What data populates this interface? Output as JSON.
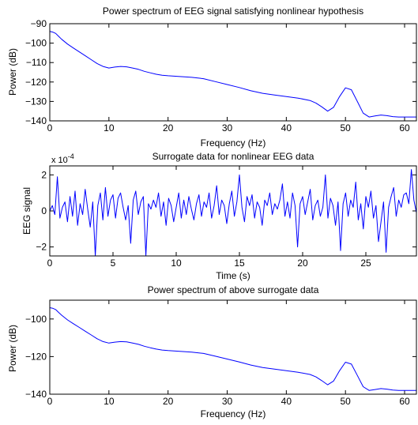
{
  "chart_data": [
    {
      "type": "line",
      "title": "Power spectrum of EEG signal satisfying nonlinear hypothesis",
      "xlabel": "Frequency (Hz)",
      "ylabel": "Power (dB)",
      "xlim": [
        0,
        62
      ],
      "ylim": [
        -140,
        -90
      ],
      "xticks": [
        0,
        10,
        20,
        30,
        40,
        50,
        60
      ],
      "yticks": [
        -140,
        -130,
        -120,
        -110,
        -100,
        -90
      ],
      "grid": false,
      "line_color": "#0000ff",
      "series": [
        {
          "x": [
            0,
            0.5,
            1,
            1.5,
            2,
            3,
            4,
            5,
            6,
            7,
            8,
            9,
            10,
            11,
            12,
            13,
            14,
            15,
            16,
            17,
            18,
            19,
            20,
            22,
            24,
            26,
            28,
            30,
            32,
            34,
            36,
            38,
            40,
            42,
            44,
            45,
            46,
            47,
            48,
            49,
            50,
            51,
            52,
            53,
            54,
            55,
            56,
            57,
            58,
            59,
            60,
            61,
            62
          ],
          "y": [
            -94,
            -94.3,
            -95,
            -96.5,
            -98,
            -100.5,
            -102.5,
            -104.5,
            -106.5,
            -108.5,
            -110.5,
            -112,
            -112.8,
            -112.3,
            -112,
            -112.2,
            -112.8,
            -113.5,
            -114.5,
            -115.3,
            -116,
            -116.5,
            -116.8,
            -117.2,
            -117.6,
            -118.3,
            -119.8,
            -121.3,
            -122.8,
            -124.5,
            -125.8,
            -126.7,
            -127.5,
            -128.3,
            -129.5,
            -130.8,
            -132.8,
            -135,
            -133,
            -127.5,
            -123,
            -124,
            -130,
            -136,
            -138,
            -137.5,
            -137,
            -137.3,
            -137.8,
            -138,
            -138,
            -138,
            -138
          ]
        }
      ]
    },
    {
      "type": "line",
      "title": "Surrogate data for nonlinear EEG data",
      "xlabel": "Time (s)",
      "ylabel": "EEG signal",
      "exponent_label": "x 10",
      "exponent_power": "-4",
      "xlim": [
        0,
        29
      ],
      "ylim": [
        -2.5,
        2.5
      ],
      "xticks": [
        0,
        5,
        10,
        15,
        20,
        25
      ],
      "yticks": [
        -2,
        0,
        2
      ],
      "grid": false,
      "line_color": "#0000ff",
      "series": [
        {
          "x": [
            0,
            0.2,
            0.4,
            0.6,
            0.8,
            1.0,
            1.2,
            1.4,
            1.6,
            1.8,
            2.0,
            2.2,
            2.4,
            2.6,
            2.8,
            3.0,
            3.2,
            3.4,
            3.6,
            3.8,
            4.0,
            4.2,
            4.4,
            4.6,
            4.8,
            5.0,
            5.2,
            5.4,
            5.6,
            5.8,
            6.0,
            6.2,
            6.4,
            6.6,
            6.8,
            7.0,
            7.2,
            7.4,
            7.6,
            7.8,
            8.0,
            8.2,
            8.4,
            8.6,
            8.8,
            9.0,
            9.2,
            9.4,
            9.6,
            9.8,
            10.0,
            10.2,
            10.4,
            10.6,
            10.8,
            11.0,
            11.2,
            11.4,
            11.6,
            11.8,
            12.0,
            12.2,
            12.4,
            12.6,
            12.8,
            13.0,
            13.2,
            13.4,
            13.6,
            13.8,
            14.0,
            14.2,
            14.4,
            14.6,
            14.8,
            15.0,
            15.2,
            15.4,
            15.6,
            15.8,
            16.0,
            16.2,
            16.4,
            16.6,
            16.8,
            17.0,
            17.2,
            17.4,
            17.6,
            17.8,
            18.0,
            18.2,
            18.4,
            18.6,
            18.8,
            19.0,
            19.2,
            19.4,
            19.6,
            19.8,
            20.0,
            20.2,
            20.4,
            20.6,
            20.8,
            21.0,
            21.2,
            21.4,
            21.6,
            21.8,
            22.0,
            22.2,
            22.4,
            22.6,
            22.8,
            23.0,
            23.2,
            23.4,
            23.6,
            23.8,
            24.0,
            24.2,
            24.4,
            24.6,
            24.8,
            25.0,
            25.2,
            25.4,
            25.6,
            25.8,
            26.0,
            26.2,
            26.4,
            26.6,
            26.8,
            27.0,
            27.2,
            27.4,
            27.6,
            27.8,
            28.0,
            28.2,
            28.4,
            28.6,
            28.8,
            29.0
          ],
          "y": [
            0,
            0.3,
            -0.2,
            1.9,
            -0.4,
            0.2,
            0.5,
            -0.6,
            0.8,
            -0.3,
            1.1,
            -0.8,
            0.4,
            -0.2,
            1.2,
            0.1,
            -0.9,
            0.5,
            -2.5,
            0.3,
            1.0,
            -0.5,
            1.3,
            -0.3,
            0.6,
            0.9,
            -0.4,
            0.7,
            1.0,
            0.2,
            -0.5,
            0.3,
            -1.8,
            0.6,
            1.1,
            -0.2,
            0.5,
            0.8,
            -2.5,
            0.4,
            0.1,
            0.6,
            0.2,
            1.0,
            -0.3,
            0.5,
            -0.8,
            0.7,
            0.3,
            -0.6,
            0.2,
            1.0,
            -0.4,
            0.6,
            -0.2,
            0.8,
            0.1,
            -0.5,
            0.4,
            0.9,
            -0.3,
            0.5,
            0.2,
            1.0,
            -0.4,
            0.3,
            1.4,
            -0.2,
            0.6,
            0.3,
            -0.7,
            0.4,
            1.1,
            -0.3,
            0.5,
            2.0,
            0.2,
            -0.6,
            0.8,
            0.3,
            0.9,
            -0.4,
            0.5,
            0.2,
            -0.8,
            0.6,
            0.3,
            1.0,
            -0.2,
            0.4,
            0.1,
            0.6,
            1.5,
            -0.3,
            0.5,
            -0.4,
            1.0,
            0.3,
            -2.0,
            0.4,
            0.8,
            -0.2,
            0.5,
            1.2,
            -0.5,
            0.3,
            0.6,
            -0.3,
            0.2,
            2.0,
            -0.4,
            0.7,
            0.3,
            -0.8,
            0.5,
            -2.2,
            0.4,
            1.0,
            -0.3,
            0.6,
            0.2,
            1.6,
            -0.5,
            0.4,
            -1.0,
            0.8,
            0.2,
            1.1,
            -0.4,
            0.3,
            -1.7,
            -0.6,
            0.5,
            -2.3,
            0.2,
            0.8,
            1.3,
            -0.3,
            0.6,
            0.2,
            0.9,
            1.0,
            0.4,
            2.3,
            0.6,
            -0.1
          ]
        }
      ]
    },
    {
      "type": "line",
      "title": "Power spectrum of above surrogate data",
      "xlabel": "Frequency (Hz)",
      "ylabel": "Power (dB)",
      "xlim": [
        0,
        62
      ],
      "ylim": [
        -140,
        -90
      ],
      "xticks": [
        0,
        10,
        20,
        30,
        40,
        50,
        60
      ],
      "yticks": [
        -140,
        -120,
        -100
      ],
      "grid": false,
      "line_color": "#0000ff",
      "series": [
        {
          "x": [
            0,
            0.5,
            1,
            1.5,
            2,
            3,
            4,
            5,
            6,
            7,
            8,
            9,
            10,
            11,
            12,
            13,
            14,
            15,
            16,
            17,
            18,
            19,
            20,
            22,
            24,
            26,
            28,
            30,
            32,
            34,
            36,
            38,
            40,
            42,
            44,
            45,
            46,
            47,
            48,
            49,
            50,
            51,
            52,
            53,
            54,
            55,
            56,
            57,
            58,
            59,
            60,
            61,
            62
          ],
          "y": [
            -94,
            -94.3,
            -95,
            -96.5,
            -98,
            -100.5,
            -102.5,
            -104.5,
            -106.5,
            -108.5,
            -110.5,
            -112,
            -112.8,
            -112.3,
            -112,
            -112.2,
            -112.8,
            -113.5,
            -114.5,
            -115.3,
            -116,
            -116.5,
            -116.8,
            -117.2,
            -117.6,
            -118.3,
            -119.8,
            -121.3,
            -122.8,
            -124.5,
            -125.8,
            -126.7,
            -127.5,
            -128.3,
            -129.5,
            -130.8,
            -132.8,
            -135,
            -133,
            -127.5,
            -123,
            -124,
            -130,
            -136,
            -138,
            -137.5,
            -137,
            -137.3,
            -137.8,
            -138,
            -138,
            -138,
            -138
          ]
        }
      ]
    }
  ]
}
